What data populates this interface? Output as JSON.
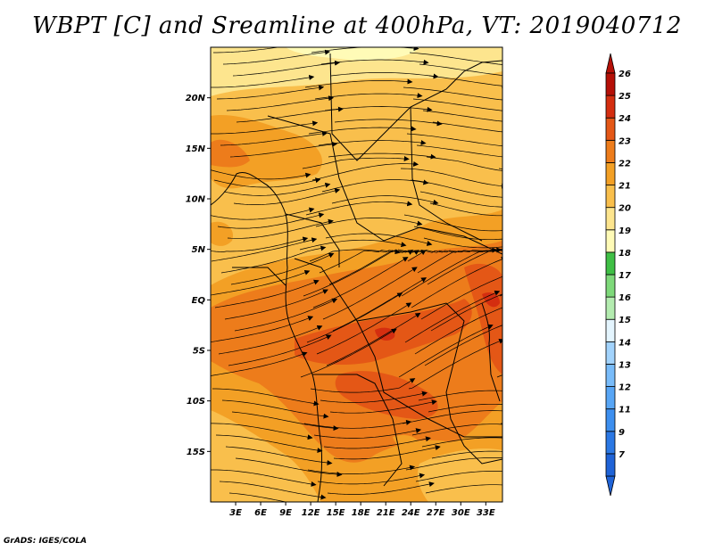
{
  "title": "WBPT [C] and Sreamline at 400hPa, VT: 2019040712",
  "credit": "GrADS: IGES/COLA",
  "map": {
    "lat_range": [
      -20,
      25
    ],
    "lon_range": [
      0,
      35
    ],
    "lat_ticks": [
      {
        "value": 20,
        "label": "20N"
      },
      {
        "value": 15,
        "label": "15N"
      },
      {
        "value": 10,
        "label": "10N"
      },
      {
        "value": 5,
        "label": "5N"
      },
      {
        "value": 0,
        "label": "EQ"
      },
      {
        "value": -5,
        "label": "5S"
      },
      {
        "value": -10,
        "label": "10S"
      },
      {
        "value": -15,
        "label": "15S"
      }
    ],
    "lon_ticks": [
      {
        "value": 3,
        "label": "3E"
      },
      {
        "value": 6,
        "label": "6E"
      },
      {
        "value": 9,
        "label": "9E"
      },
      {
        "value": 12,
        "label": "12E"
      },
      {
        "value": 15,
        "label": "15E"
      },
      {
        "value": 18,
        "label": "18E"
      },
      {
        "value": 21,
        "label": "21E"
      },
      {
        "value": 24,
        "label": "24E"
      },
      {
        "value": 27,
        "label": "27E"
      },
      {
        "value": 30,
        "label": "30E"
      },
      {
        "value": 33,
        "label": "33E"
      }
    ]
  },
  "colorbar": {
    "levels": [
      {
        "label": "7",
        "color": "#1f63d7"
      },
      {
        "label": "9",
        "color": "#2b78e4"
      },
      {
        "label": "11",
        "color": "#3d8fef"
      },
      {
        "label": "12",
        "color": "#58a6f6"
      },
      {
        "label": "13",
        "color": "#79bcfa"
      },
      {
        "label": "14",
        "color": "#a2d3fc"
      },
      {
        "label": "15",
        "color": "#e4f5fe"
      },
      {
        "label": "16",
        "color": "#b4ecb0"
      },
      {
        "label": "17",
        "color": "#7ed97a"
      },
      {
        "label": "18",
        "color": "#3fbf45"
      },
      {
        "label": "19",
        "color": "#fffbb7"
      },
      {
        "label": "20",
        "color": "#fde58e"
      },
      {
        "label": "21",
        "color": "#f9bf4c"
      },
      {
        "label": "22",
        "color": "#f3a025"
      },
      {
        "label": "23",
        "color": "#ed7c1b"
      },
      {
        "label": "24",
        "color": "#e45716"
      },
      {
        "label": "25",
        "color": "#d42e10"
      },
      {
        "label": "26",
        "color": "#b51007"
      }
    ]
  }
}
